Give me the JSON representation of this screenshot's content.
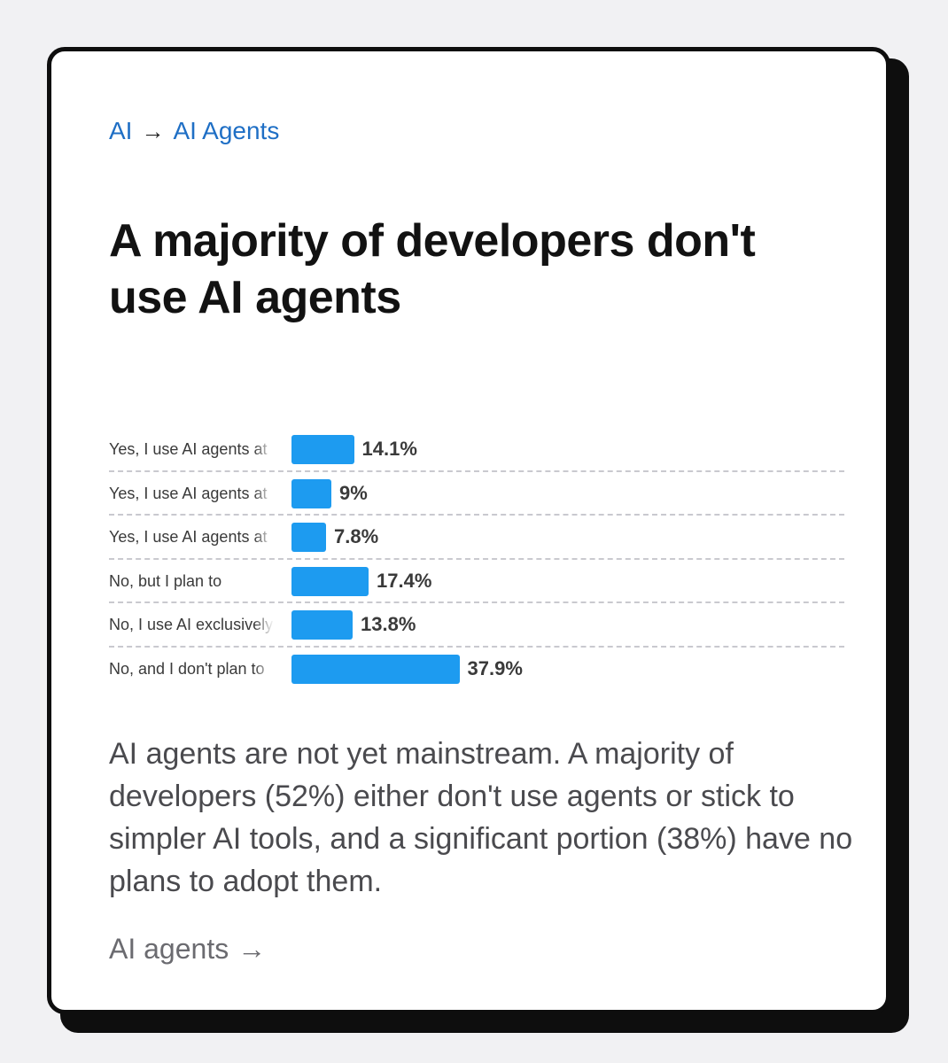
{
  "breadcrumb": {
    "items": [
      "AI",
      "AI Agents"
    ],
    "separator": "→"
  },
  "title": "A majority of developers don't use AI agents",
  "chart_data": {
    "type": "bar",
    "orientation": "horizontal",
    "categories": [
      "Yes, I use AI agents at",
      "Yes, I use AI agents at",
      "Yes, I use AI agents at",
      "No, but I plan to",
      "No, I use AI exclusively",
      "No, and I don't plan to"
    ],
    "values": [
      14.1,
      9,
      7.8,
      17.4,
      13.8,
      37.9
    ],
    "value_labels": [
      "14.1%",
      "9%",
      "7.8%",
      "17.4%",
      "13.8%",
      "37.9%"
    ],
    "title": "",
    "xlabel": "",
    "ylabel": "",
    "xlim": [
      0,
      100
    ],
    "grid": false,
    "legend": "none",
    "bar_color": "#1d9bf0"
  },
  "summary": "AI agents are not yet mainstream. A majority of developers (52%) either don't use agents or stick to simpler AI tools, and a significant portion (38%) have no plans to adopt them.",
  "footer_link": {
    "label": "AI agents",
    "arrow": "→"
  },
  "colors": {
    "link": "#1f6fc5",
    "bar": "#1d9bf0",
    "text": "#121212",
    "muted": "#4a4a4e"
  }
}
